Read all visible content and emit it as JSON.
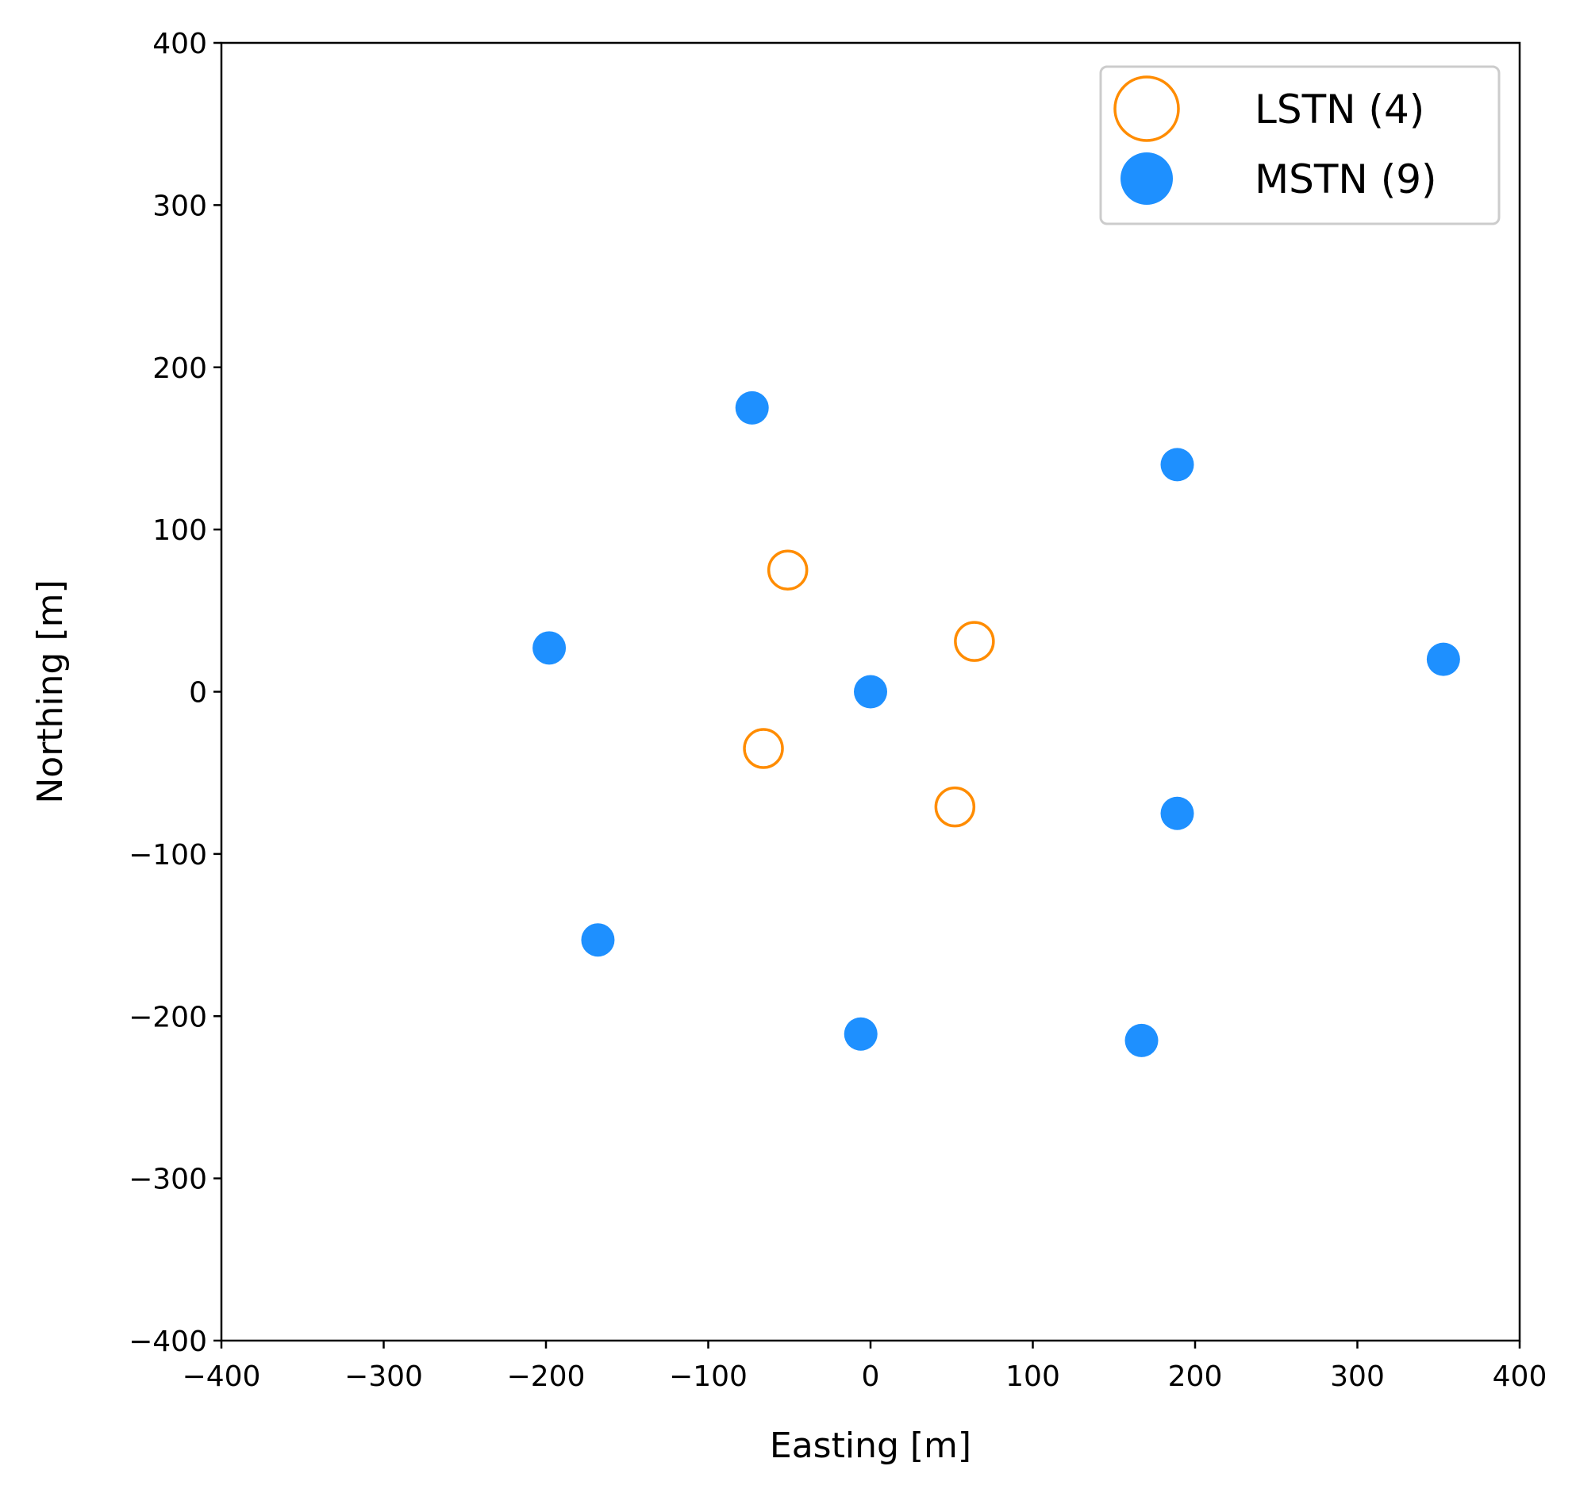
{
  "chart_data": {
    "type": "scatter",
    "title": "",
    "xlabel": "Easting [m]",
    "ylabel": "Northing [m]",
    "xlim": [
      -400,
      400
    ],
    "ylim": [
      -400,
      400
    ],
    "xticks": [
      -400,
      -300,
      -200,
      -100,
      0,
      100,
      200,
      300,
      400
    ],
    "yticks": [
      -400,
      -300,
      -200,
      -100,
      0,
      100,
      200,
      300,
      400
    ],
    "grid": false,
    "legend_position": "top-right",
    "series": [
      {
        "name": "LSTN (4)",
        "marker": "hollow-circle",
        "color": "#ff8c00",
        "points": [
          {
            "x": -51,
            "y": 75
          },
          {
            "x": 64,
            "y": 31
          },
          {
            "x": -66,
            "y": -35
          },
          {
            "x": 52,
            "y": -71
          }
        ]
      },
      {
        "name": "MSTN (9)",
        "marker": "filled-circle",
        "color": "#1e90ff",
        "points": [
          {
            "x": -73,
            "y": 175
          },
          {
            "x": 189,
            "y": 140
          },
          {
            "x": -198,
            "y": 27
          },
          {
            "x": 0,
            "y": 0
          },
          {
            "x": 353,
            "y": 20
          },
          {
            "x": 189,
            "y": -75
          },
          {
            "x": -168,
            "y": -153
          },
          {
            "x": -6,
            "y": -211
          },
          {
            "x": 167,
            "y": -215
          }
        ]
      }
    ]
  }
}
